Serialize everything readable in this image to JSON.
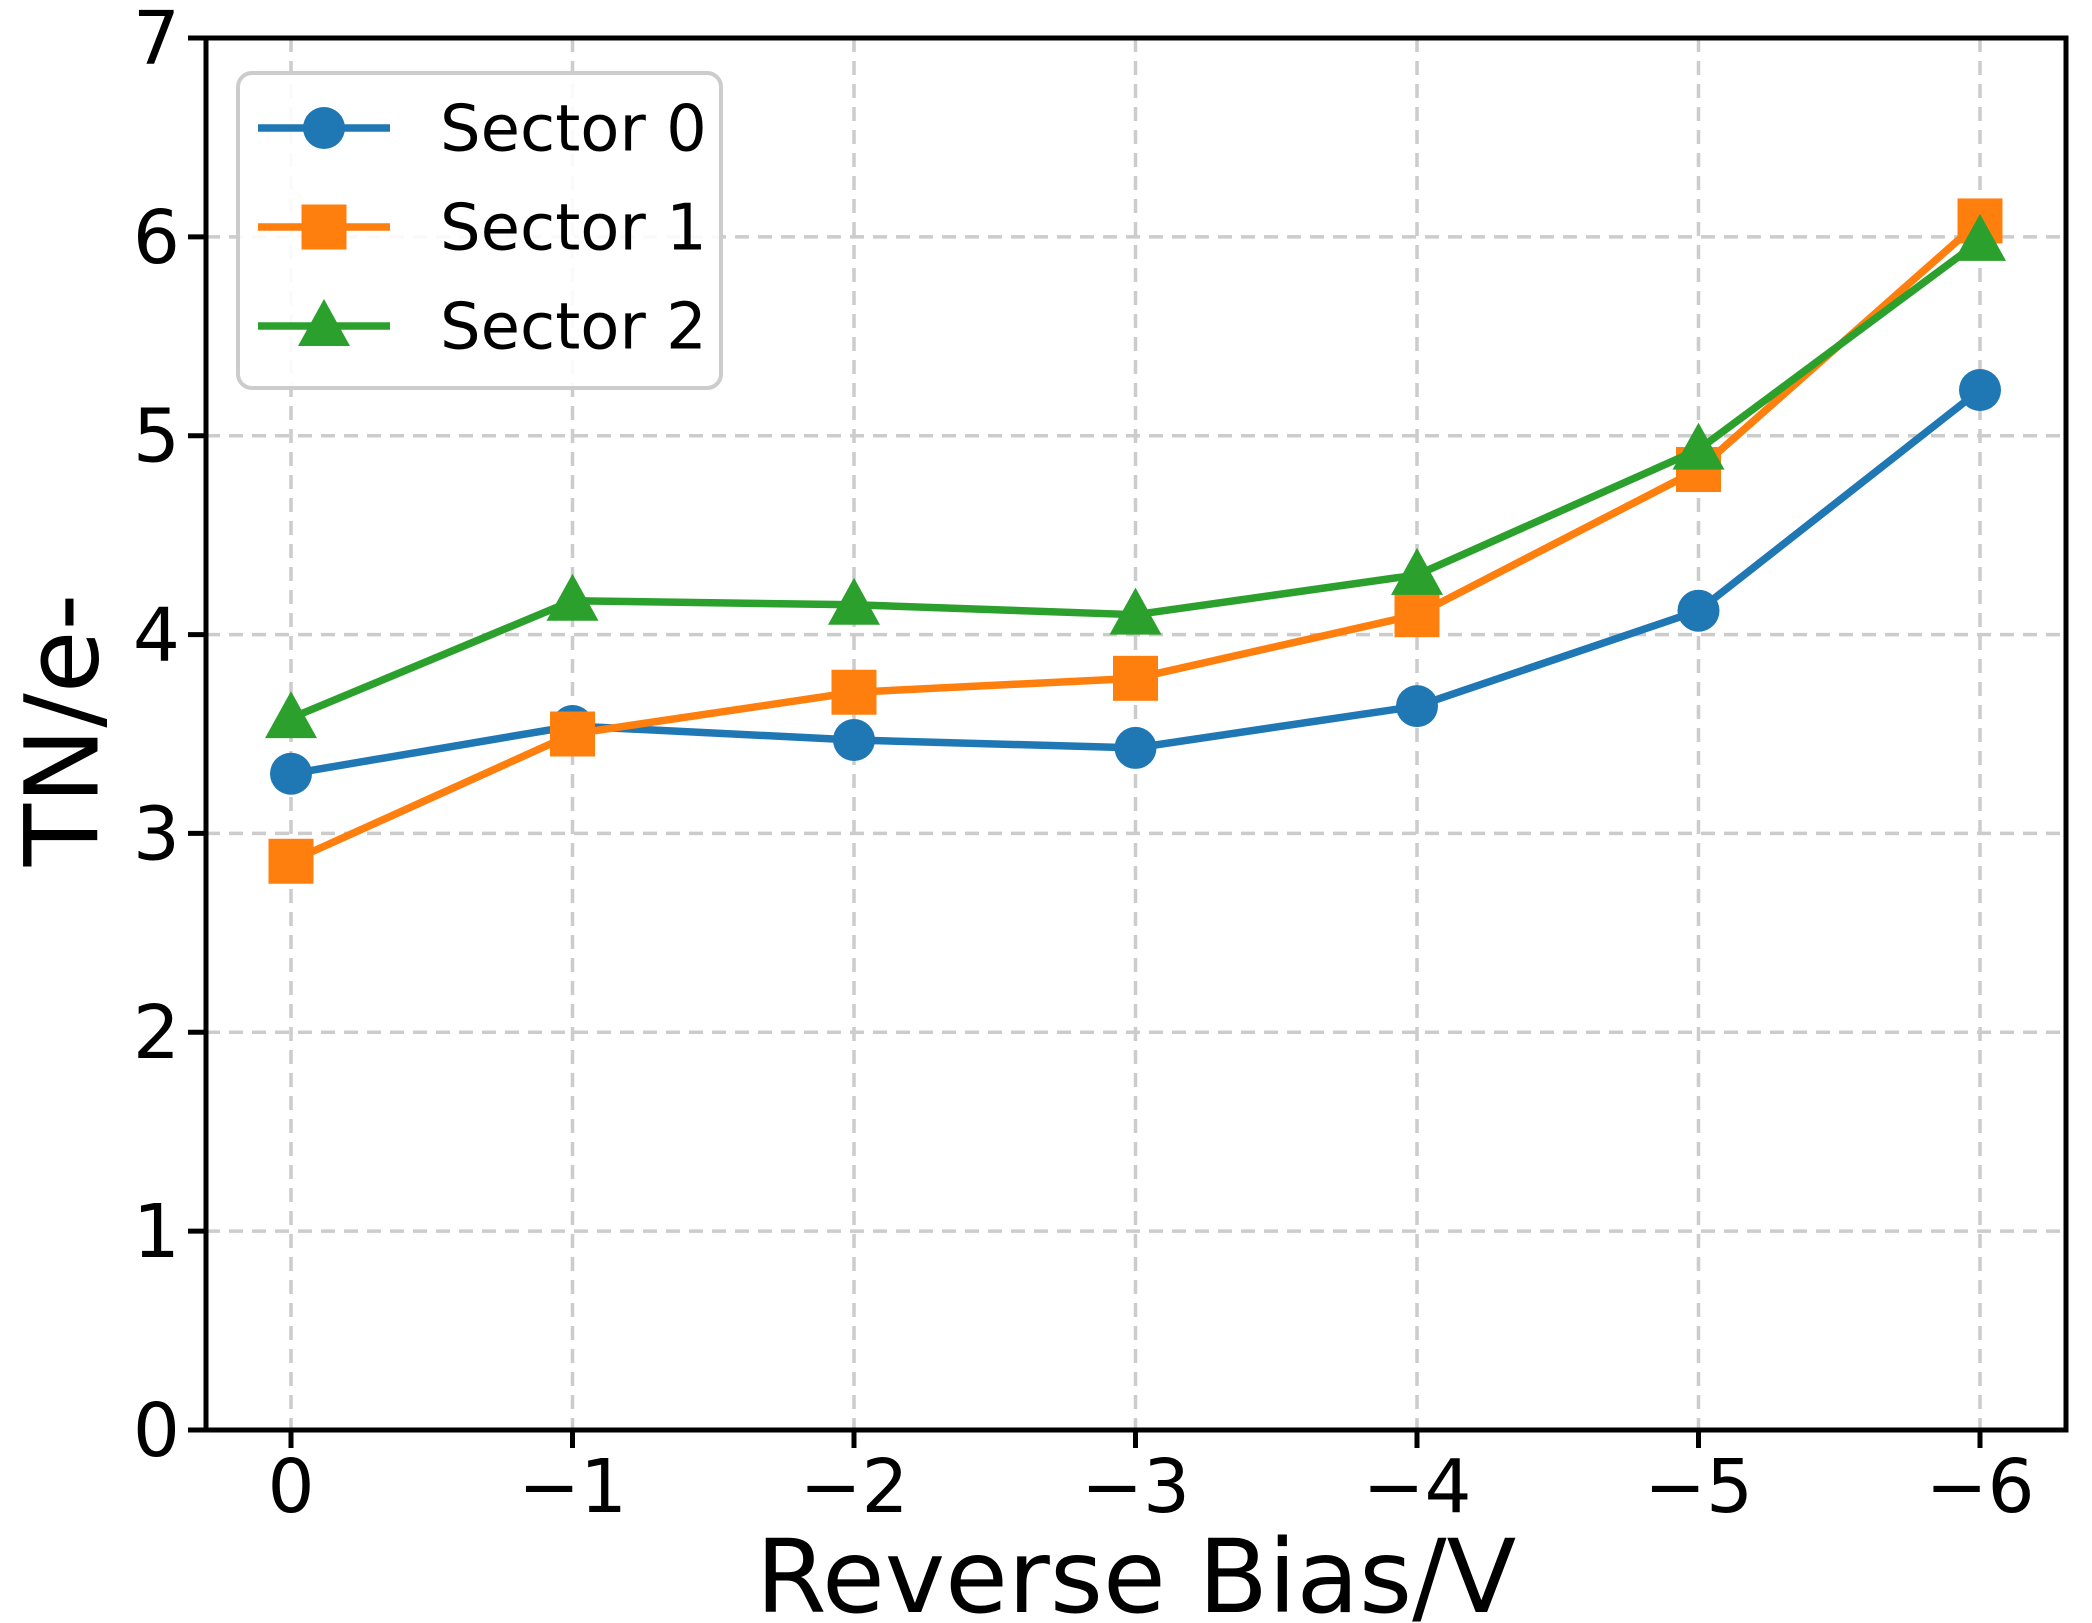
{
  "chart_data": {
    "type": "line",
    "title": "",
    "xlabel": "Reverse Bias/V",
    "ylabel": "TN/e-",
    "x_values": [
      0,
      -1,
      -2,
      -3,
      -4,
      -5,
      -6
    ],
    "x_tick_labels": [
      "0",
      "−1",
      "−2",
      "−3",
      "−4",
      "−5",
      "−6"
    ],
    "y_ticks": [
      0,
      1,
      2,
      3,
      4,
      5,
      6,
      7
    ],
    "y_tick_labels": [
      "0",
      "1",
      "2",
      "3",
      "4",
      "5",
      "6",
      "7"
    ],
    "ylim": [
      0,
      7
    ],
    "grid": "dashed",
    "grid_color": "#cccccc",
    "axis_color": "#000000",
    "legend_position": "upper-left",
    "legend_border_color": "#cccccc",
    "series": [
      {
        "name": "Sector 0",
        "marker": "circle",
        "color": "#1f77b4",
        "values": [
          3.3,
          3.54,
          3.47,
          3.43,
          3.64,
          4.12,
          5.23
        ]
      },
      {
        "name": "Sector 1",
        "marker": "square",
        "color": "#ff7f0e",
        "values": [
          2.86,
          3.5,
          3.71,
          3.78,
          4.1,
          4.83,
          6.08
        ]
      },
      {
        "name": "Sector 2",
        "marker": "triangle",
        "color": "#2ca02c",
        "values": [
          3.58,
          4.17,
          4.15,
          4.1,
          4.3,
          4.93,
          5.98
        ]
      }
    ]
  }
}
